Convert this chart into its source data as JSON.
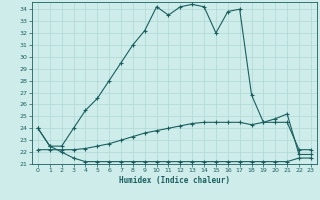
{
  "xlabel": "Humidex (Indice chaleur)",
  "bg_color": "#ceecea",
  "grid_color": "#add8d4",
  "line_color": "#1a5f5f",
  "xlim": [
    -0.5,
    23.5
  ],
  "ylim": [
    21,
    34.6
  ],
  "yticks": [
    21,
    22,
    23,
    24,
    25,
    26,
    27,
    28,
    29,
    30,
    31,
    32,
    33,
    34
  ],
  "xticks": [
    0,
    1,
    2,
    3,
    4,
    5,
    6,
    7,
    8,
    9,
    10,
    11,
    12,
    13,
    14,
    15,
    16,
    17,
    18,
    19,
    20,
    21,
    22,
    23
  ],
  "curve1_x": [
    0,
    1,
    2,
    3,
    4,
    5,
    6,
    7,
    8,
    9,
    10,
    11,
    12,
    13,
    14,
    15,
    16,
    17,
    18,
    19,
    20,
    21,
    22,
    23
  ],
  "curve1_y": [
    24.0,
    22.5,
    22.0,
    21.5,
    21.2,
    21.2,
    21.2,
    21.2,
    21.2,
    21.2,
    21.2,
    21.2,
    21.2,
    21.2,
    21.2,
    21.2,
    21.2,
    21.2,
    21.2,
    21.2,
    21.2,
    21.2,
    21.5,
    21.5
  ],
  "curve2_x": [
    0,
    1,
    2,
    3,
    4,
    5,
    6,
    7,
    8,
    9,
    10,
    11,
    12,
    13,
    14,
    15,
    16,
    17,
    18,
    19,
    20,
    21,
    22,
    23
  ],
  "curve2_y": [
    22.2,
    22.2,
    22.2,
    22.2,
    22.3,
    22.5,
    22.7,
    23.0,
    23.3,
    23.6,
    23.8,
    24.0,
    24.2,
    24.4,
    24.5,
    24.5,
    24.5,
    24.5,
    24.3,
    24.5,
    24.5,
    24.5,
    22.2,
    22.2
  ],
  "curve3_x": [
    0,
    1,
    2,
    3,
    4,
    5,
    6,
    7,
    8,
    9,
    10,
    11,
    12,
    13,
    14,
    15,
    16,
    17,
    18,
    19,
    20,
    21,
    22,
    23
  ],
  "curve3_y": [
    24.0,
    22.5,
    22.5,
    24.0,
    25.5,
    26.5,
    28.0,
    29.5,
    31.0,
    32.2,
    34.2,
    33.5,
    34.2,
    34.4,
    34.2,
    32.0,
    33.8,
    34.0,
    26.8,
    24.5,
    24.8,
    25.2,
    21.8,
    21.8
  ]
}
